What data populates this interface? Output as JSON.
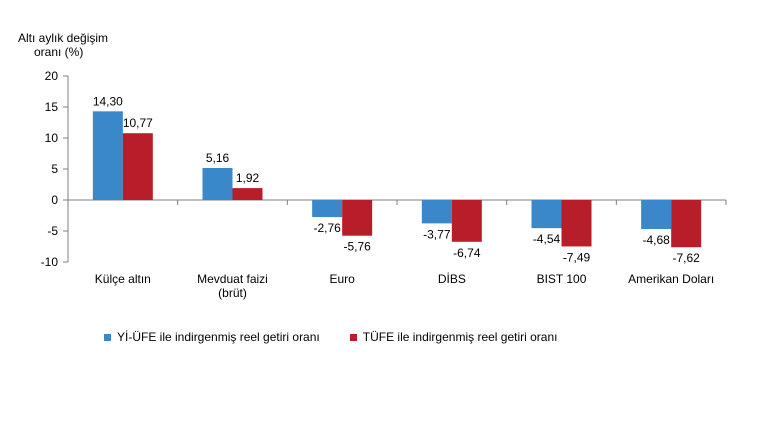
{
  "chart_data": {
    "type": "bar",
    "ylabel_line1": "Altı aylık değişim",
    "ylabel_line2": "oranı (%)",
    "ylim": [
      -10,
      20
    ],
    "yticks": [
      20,
      15,
      10,
      5,
      0,
      -5,
      -10
    ],
    "categories": [
      [
        "Külçe altın"
      ],
      [
        "Mevduat faizi",
        "(brüt)"
      ],
      [
        "Euro"
      ],
      [
        "DİBS"
      ],
      [
        "BIST 100"
      ],
      [
        "Amerikan Doları"
      ]
    ],
    "series": [
      {
        "name": "Yİ-ÜFE ile indirgenmiş reel getiri oranı",
        "color": "#3a87c9",
        "values": [
          14.3,
          5.16,
          -2.76,
          -3.77,
          -4.54,
          -4.68
        ],
        "labels": [
          "14,30",
          "5,16",
          "-2,76",
          "-3,77",
          "-4,54",
          "-4,68"
        ]
      },
      {
        "name": "TÜFE ile indirgenmiş reel getiri oranı",
        "color": "#b81e2a",
        "values": [
          10.77,
          1.92,
          -5.76,
          -6.74,
          -7.49,
          -7.62
        ],
        "labels": [
          "10,77",
          "1,92",
          "-5,76",
          "-6,74",
          "-7,49",
          "-7,62"
        ]
      }
    ],
    "grid": false,
    "legend_position": "bottom"
  }
}
